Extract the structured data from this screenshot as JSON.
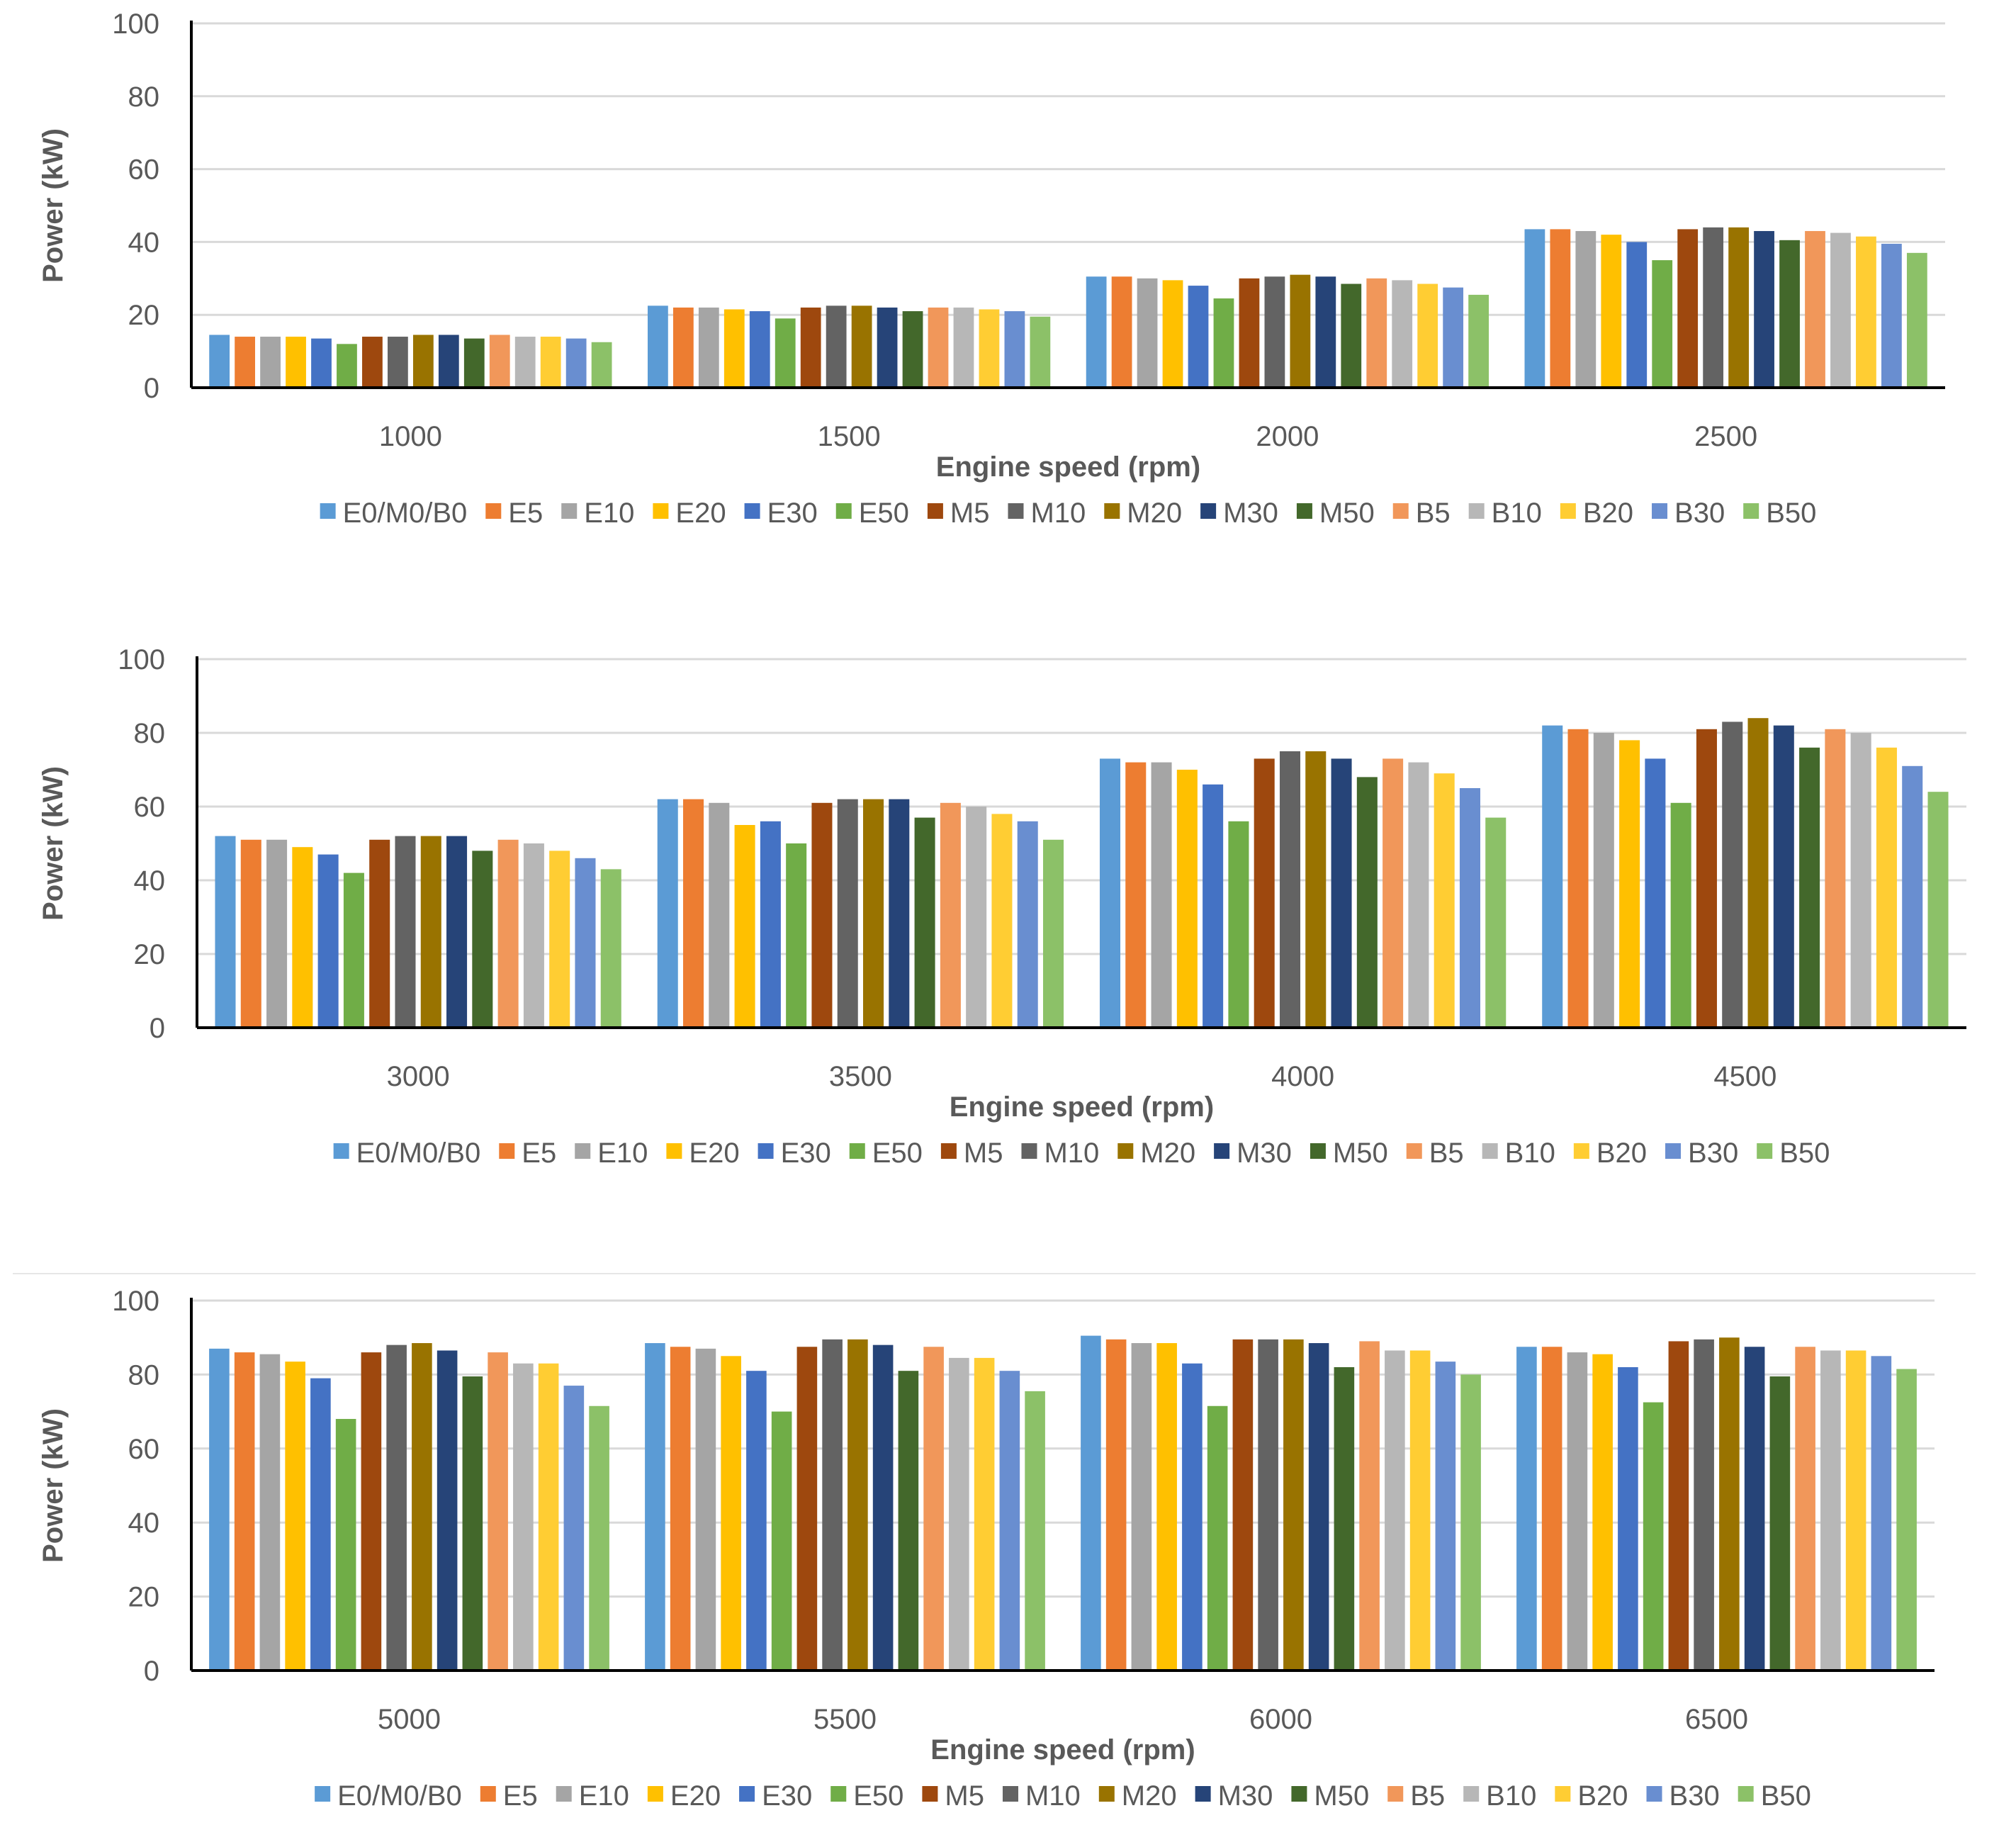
{
  "legend": {
    "series": [
      {
        "name": "E0/M0/B0",
        "color": "#5b9bd5"
      },
      {
        "name": "E5",
        "color": "#ed7d31"
      },
      {
        "name": "E10",
        "color": "#a5a5a5"
      },
      {
        "name": "E20",
        "color": "#ffc000"
      },
      {
        "name": "E30",
        "color": "#4472c4"
      },
      {
        "name": "E50",
        "color": "#70ad47"
      },
      {
        "name": "M5",
        "color": "#9e480e"
      },
      {
        "name": "M10",
        "color": "#636363"
      },
      {
        "name": "M20",
        "color": "#997300"
      },
      {
        "name": "M30",
        "color": "#264478"
      },
      {
        "name": "M50",
        "color": "#43682b"
      },
      {
        "name": "B5",
        "color": "#f1975a"
      },
      {
        "name": "B10",
        "color": "#b7b7b7"
      },
      {
        "name": "B20",
        "color": "#ffcd33"
      },
      {
        "name": "B30",
        "color": "#698ed0"
      },
      {
        "name": "B50",
        "color": "#8cc168"
      }
    ]
  },
  "chart_data": [
    {
      "type": "bar",
      "title": "",
      "xlabel": "Engine speed (rpm)",
      "ylabel": "Power (kW)",
      "ylim": [
        0,
        100
      ],
      "yticks": [
        "0",
        "20",
        "40",
        "60",
        "80",
        "100"
      ],
      "categories": [
        "1000",
        "1500",
        "2000",
        "2500"
      ],
      "grid": true,
      "legend_position": "bottom",
      "series": [
        {
          "name": "E0/M0/B0",
          "values": [
            14.5,
            22.5,
            30.5,
            43.5
          ]
        },
        {
          "name": "E5",
          "values": [
            14,
            22,
            30.5,
            43.5
          ]
        },
        {
          "name": "E10",
          "values": [
            14,
            22,
            30,
            43
          ]
        },
        {
          "name": "E20",
          "values": [
            14,
            21.5,
            29.5,
            42
          ]
        },
        {
          "name": "E30",
          "values": [
            13.5,
            21,
            28,
            40
          ]
        },
        {
          "name": "E50",
          "values": [
            12,
            19,
            24.5,
            35
          ]
        },
        {
          "name": "M5",
          "values": [
            14,
            22,
            30,
            43.5
          ]
        },
        {
          "name": "M10",
          "values": [
            14,
            22.5,
            30.5,
            44
          ]
        },
        {
          "name": "M20",
          "values": [
            14.5,
            22.5,
            31,
            44
          ]
        },
        {
          "name": "M30",
          "values": [
            14.5,
            22,
            30.5,
            43
          ]
        },
        {
          "name": "M50",
          "values": [
            13.5,
            21,
            28.5,
            40.5
          ]
        },
        {
          "name": "B5",
          "values": [
            14.5,
            22,
            30,
            43
          ]
        },
        {
          "name": "B10",
          "values": [
            14,
            22,
            29.5,
            42.5
          ]
        },
        {
          "name": "B20",
          "values": [
            14,
            21.5,
            28.5,
            41.5
          ]
        },
        {
          "name": "B30",
          "values": [
            13.5,
            21,
            27.5,
            39.5
          ]
        },
        {
          "name": "B50",
          "values": [
            12.5,
            19.5,
            25.5,
            37
          ]
        }
      ]
    },
    {
      "type": "bar",
      "title": "",
      "xlabel": "Engine speed (rpm)",
      "ylabel": "Power (kW)",
      "ylim": [
        0,
        100
      ],
      "yticks": [
        "0",
        "20",
        "40",
        "60",
        "80",
        "100"
      ],
      "categories": [
        "3000",
        "3500",
        "4000",
        "4500"
      ],
      "grid": true,
      "legend_position": "bottom",
      "series": [
        {
          "name": "E0/M0/B0",
          "values": [
            52,
            62,
            73,
            82
          ]
        },
        {
          "name": "E5",
          "values": [
            51,
            62,
            72,
            81
          ]
        },
        {
          "name": "E10",
          "values": [
            51,
            61,
            72,
            80
          ]
        },
        {
          "name": "E20",
          "values": [
            49,
            55,
            70,
            78
          ]
        },
        {
          "name": "E30",
          "values": [
            47,
            56,
            66,
            73
          ]
        },
        {
          "name": "E50",
          "values": [
            42,
            50,
            56,
            61
          ]
        },
        {
          "name": "M5",
          "values": [
            51,
            61,
            73,
            81
          ]
        },
        {
          "name": "M10",
          "values": [
            52,
            62,
            75,
            83
          ]
        },
        {
          "name": "M20",
          "values": [
            52,
            62,
            75,
            84
          ]
        },
        {
          "name": "M30",
          "values": [
            52,
            62,
            73,
            82
          ]
        },
        {
          "name": "M50",
          "values": [
            48,
            57,
            68,
            76
          ]
        },
        {
          "name": "B5",
          "values": [
            51,
            61,
            73,
            81
          ]
        },
        {
          "name": "B10",
          "values": [
            50,
            60,
            72,
            80
          ]
        },
        {
          "name": "B20",
          "values": [
            48,
            58,
            69,
            76
          ]
        },
        {
          "name": "B30",
          "values": [
            46,
            56,
            65,
            71
          ]
        },
        {
          "name": "B50",
          "values": [
            43,
            51,
            57,
            64
          ]
        }
      ]
    },
    {
      "type": "bar",
      "title": "",
      "xlabel": "Engine speed (rpm)",
      "ylabel": "Power (kW)",
      "ylim": [
        0,
        100
      ],
      "yticks": [
        "0",
        "20",
        "40",
        "60",
        "80",
        "100"
      ],
      "categories": [
        "5000",
        "5500",
        "6000",
        "6500"
      ],
      "grid": true,
      "legend_position": "bottom",
      "series": [
        {
          "name": "E0/M0/B0",
          "values": [
            87,
            88.5,
            90.5,
            87.5
          ]
        },
        {
          "name": "E5",
          "values": [
            86,
            87.5,
            89.5,
            87.5
          ]
        },
        {
          "name": "E10",
          "values": [
            85.5,
            87,
            88.5,
            86
          ]
        },
        {
          "name": "E20",
          "values": [
            83.5,
            85,
            88.5,
            85.5
          ]
        },
        {
          "name": "E30",
          "values": [
            79,
            81,
            83,
            82
          ]
        },
        {
          "name": "E50",
          "values": [
            68,
            70,
            71.5,
            72.5
          ]
        },
        {
          "name": "M5",
          "values": [
            86,
            87.5,
            89.5,
            89
          ]
        },
        {
          "name": "M10",
          "values": [
            88,
            89.5,
            89.5,
            89.5
          ]
        },
        {
          "name": "M20",
          "values": [
            88.5,
            89.5,
            89.5,
            90
          ]
        },
        {
          "name": "M30",
          "values": [
            86.5,
            88,
            88.5,
            87.5
          ]
        },
        {
          "name": "M50",
          "values": [
            79.5,
            81,
            82,
            79.5
          ]
        },
        {
          "name": "B5",
          "values": [
            86,
            87.5,
            89,
            87.5
          ]
        },
        {
          "name": "B10",
          "values": [
            83,
            84.5,
            86.5,
            86.5
          ]
        },
        {
          "name": "B20",
          "values": [
            83,
            84.5,
            86.5,
            86.5
          ]
        },
        {
          "name": "B30",
          "values": [
            77,
            81,
            83.5,
            85
          ]
        },
        {
          "name": "B50",
          "values": [
            71.5,
            75.5,
            80,
            81.5
          ]
        }
      ]
    }
  ]
}
